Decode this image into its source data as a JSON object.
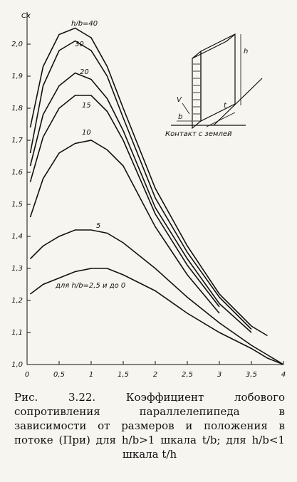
{
  "chart_data": {
    "type": "line",
    "y_label": "Cx",
    "x": [
      0.05,
      0.25,
      0.5,
      0.75,
      1,
      1.25,
      1.5,
      2,
      2.5,
      3,
      3.5,
      3.75,
      4
    ],
    "series": [
      {
        "name": "h/b=40",
        "color": "#111",
        "values": [
          1.74,
          1.93,
          2.03,
          2.05,
          2.02,
          1.93,
          1.8,
          1.55,
          1.37,
          1.22,
          1.12,
          1.09,
          null
        ]
      },
      {
        "name": "30",
        "color": "#111",
        "values": [
          1.66,
          1.87,
          1.98,
          2.01,
          1.98,
          1.9,
          1.77,
          1.52,
          1.35,
          1.21,
          1.11,
          null,
          null
        ]
      },
      {
        "name": "20",
        "color": "#111",
        "values": [
          1.62,
          1.78,
          1.87,
          1.91,
          1.89,
          1.83,
          1.73,
          1.49,
          1.33,
          1.19,
          1.1,
          null,
          null
        ]
      },
      {
        "name": "15",
        "color": "#111",
        "values": [
          1.57,
          1.71,
          1.8,
          1.84,
          1.84,
          1.79,
          1.7,
          1.47,
          1.31,
          1.18,
          null,
          null,
          null
        ]
      },
      {
        "name": "10",
        "color": "#111",
        "values": [
          1.46,
          1.58,
          1.66,
          1.69,
          1.7,
          1.67,
          1.62,
          1.43,
          1.28,
          1.16,
          null,
          null,
          null
        ]
      },
      {
        "name": "5",
        "color": "#111",
        "values": [
          1.33,
          1.37,
          1.4,
          1.42,
          1.42,
          1.41,
          1.38,
          1.3,
          1.21,
          1.13,
          1.06,
          1.03,
          1.0
        ]
      },
      {
        "name": "для h/b=2,5 и до 0",
        "color": "#111",
        "values": [
          1.22,
          1.25,
          1.27,
          1.29,
          1.3,
          1.3,
          1.28,
          1.23,
          1.16,
          1.1,
          1.05,
          1.02,
          1.0
        ]
      }
    ],
    "xlim": [
      0,
      4
    ],
    "xticks": [
      0,
      {
        "value": 0.5,
        "label": "0,5"
      },
      1,
      {
        "value": 1.5,
        "label": "1,5"
      },
      2,
      {
        "value": 2.5,
        "label": "2,5"
      },
      3,
      {
        "value": 3.5,
        "label": "3,5"
      },
      4
    ],
    "ylim": [
      1.0,
      2.1
    ],
    "yticks": [
      {
        "value": 1.0,
        "label": "1,0"
      },
      {
        "value": 1.1,
        "label": "1,1"
      },
      {
        "value": 1.2,
        "label": "1,2"
      },
      {
        "value": 1.3,
        "label": "1,3"
      },
      {
        "value": 1.4,
        "label": "1,4"
      },
      {
        "value": 1.5,
        "label": "1,5"
      },
      {
        "value": 1.6,
        "label": "1,6"
      },
      {
        "value": 1.7,
        "label": "1,7"
      },
      {
        "value": 1.8,
        "label": "1,8"
      },
      {
        "value": 1.9,
        "label": "1,9"
      },
      {
        "value": 2.0,
        "label": "2,0"
      }
    ],
    "grid": false,
    "inset_labels": [
      "h",
      "t",
      "V",
      "b",
      "Контакт с землей"
    ],
    "caption": "Рис. 3.22. Коэффициент лобового сопротивления параллелепипеда в зависимости от размеров и положения в потоке (При) для h/b>1 шкала t/b; для h/b<1 шкала t/h"
  }
}
